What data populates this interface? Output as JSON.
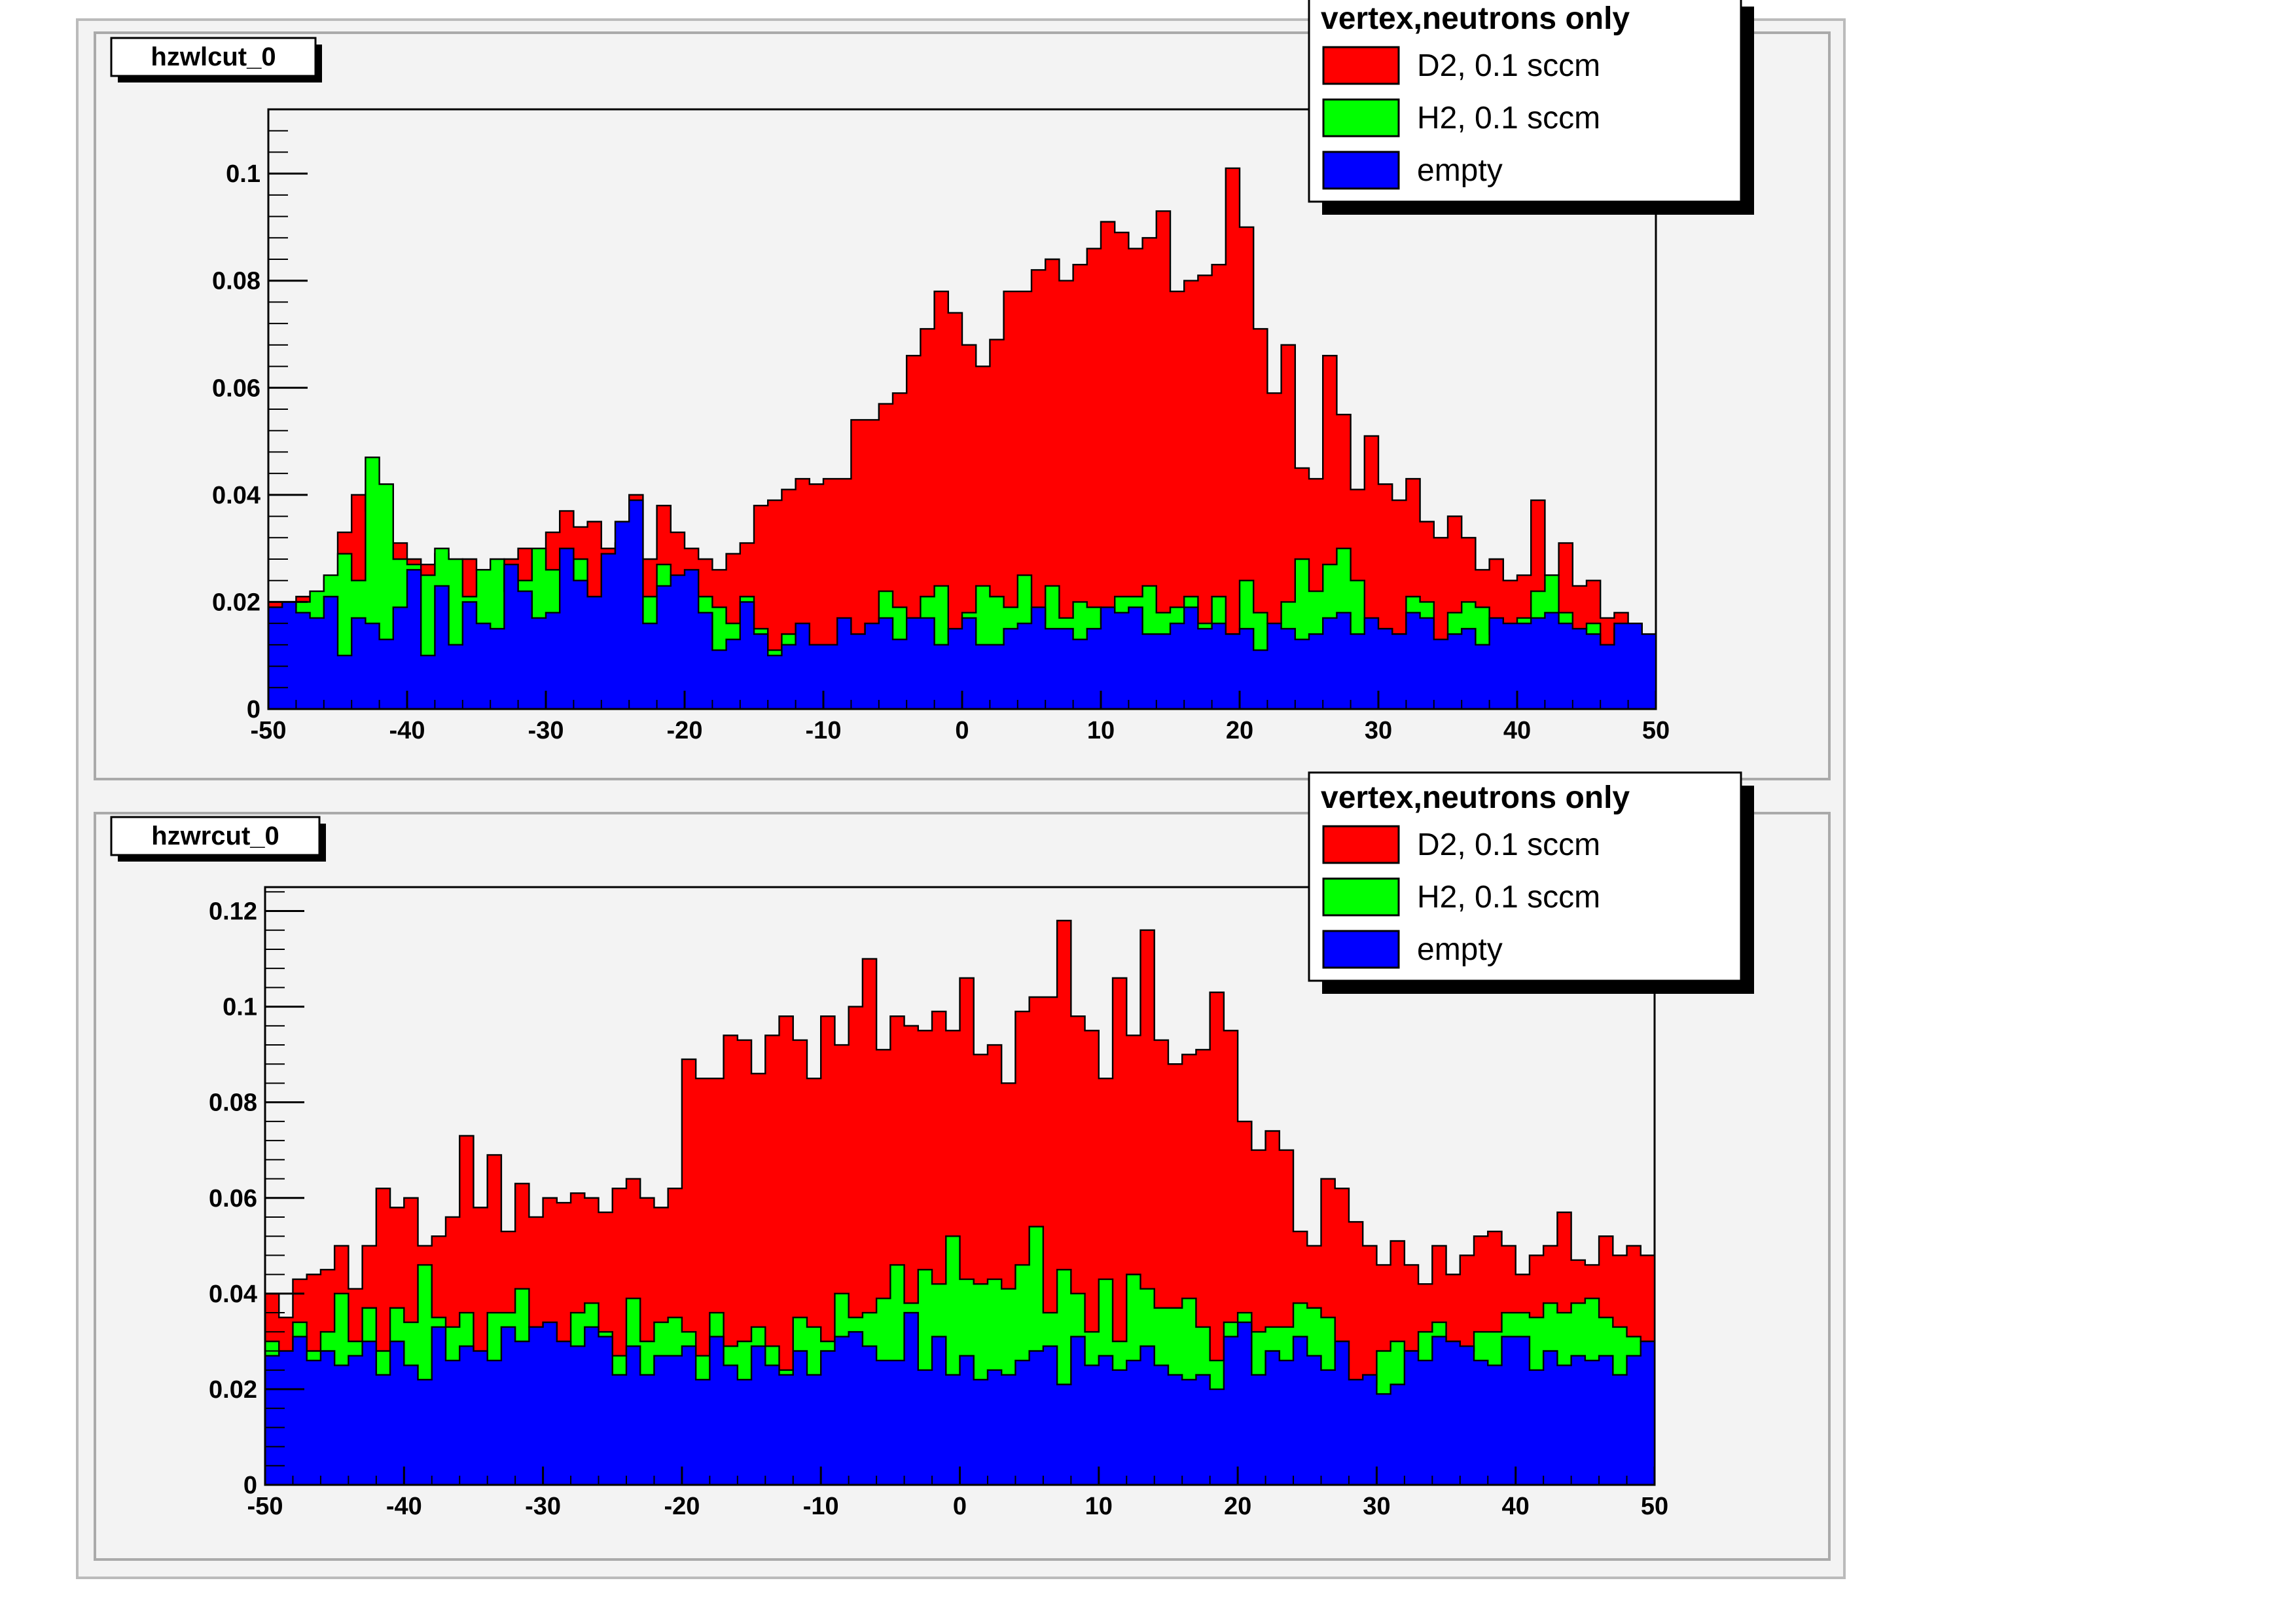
{
  "colors": {
    "D2": "#ff0000",
    "H2": "#00ff00",
    "empty": "#0000ff",
    "frame": "#f3f3f3"
  },
  "chart_data": [
    {
      "type": "bar",
      "title": "hzwlcut_0",
      "xlabel": "",
      "ylabel": "",
      "xlim": [
        -50,
        50
      ],
      "ylim": [
        0,
        0.112
      ],
      "xticks": [
        -50,
        -40,
        -30,
        -20,
        -10,
        0,
        10,
        20,
        30,
        40,
        50
      ],
      "yticks": [
        0,
        0.02,
        0.04,
        0.06,
        0.08,
        0.1
      ],
      "ytick_labels": [
        "0",
        "0.02",
        "0.04",
        "0.06",
        "0.08",
        "0.1"
      ],
      "bin_width": 1,
      "legend": {
        "header": "vertex,neutrons only",
        "position": "top-right",
        "entries": [
          {
            "name": "D2, 0.1 sccm",
            "color": "#ff0000"
          },
          {
            "name": "H2, 0.1 sccm",
            "color": "#00ff00"
          },
          {
            "name": "empty",
            "color": "#0000ff"
          }
        ]
      },
      "series": [
        {
          "name": "D2, 0.1 sccm",
          "color": "#ff0000",
          "values": [
            0.02,
            0.02,
            0.021,
            0.016,
            0.024,
            0.033,
            0.04,
            0.037,
            0.041,
            0.031,
            0.028,
            0.027,
            0.029,
            0.025,
            0.028,
            0.026,
            0.02,
            0.028,
            0.03,
            0.019,
            0.033,
            0.037,
            0.034,
            0.035,
            0.03,
            0.031,
            0.04,
            0.028,
            0.038,
            0.033,
            0.03,
            0.028,
            0.026,
            0.029,
            0.031,
            0.038,
            0.039,
            0.041,
            0.043,
            0.042,
            0.043,
            0.043,
            0.054,
            0.054,
            0.057,
            0.059,
            0.066,
            0.071,
            0.078,
            0.074,
            0.068,
            0.064,
            0.069,
            0.078,
            0.078,
            0.082,
            0.084,
            0.08,
            0.083,
            0.086,
            0.091,
            0.089,
            0.086,
            0.088,
            0.093,
            0.078,
            0.08,
            0.081,
            0.083,
            0.101,
            0.09,
            0.071,
            0.059,
            0.068,
            0.045,
            0.043,
            0.066,
            0.055,
            0.041,
            0.051,
            0.042,
            0.039,
            0.043,
            0.035,
            0.032,
            0.036,
            0.032,
            0.026,
            0.028,
            0.024,
            0.025,
            0.039,
            0.025,
            0.031,
            0.023,
            0.024,
            0.017,
            0.018,
            0.014,
            0.012
          ]
        },
        {
          "name": "H2, 0.1 sccm",
          "color": "#00ff00",
          "values": [
            0.019,
            0.019,
            0.02,
            0.022,
            0.025,
            0.029,
            0.024,
            0.047,
            0.042,
            0.028,
            0.027,
            0.025,
            0.03,
            0.028,
            0.021,
            0.026,
            0.028,
            0.022,
            0.024,
            0.03,
            0.026,
            0.024,
            0.028,
            0.021,
            0.028,
            0.03,
            0.028,
            0.021,
            0.027,
            0.024,
            0.022,
            0.021,
            0.019,
            0.016,
            0.021,
            0.015,
            0.011,
            0.014,
            0.013,
            0.011,
            0.009,
            0.011,
            0.012,
            0.016,
            0.022,
            0.019,
            0.017,
            0.021,
            0.023,
            0.013,
            0.018,
            0.023,
            0.021,
            0.019,
            0.025,
            0.016,
            0.023,
            0.017,
            0.02,
            0.019,
            0.016,
            0.021,
            0.021,
            0.023,
            0.018,
            0.019,
            0.021,
            0.016,
            0.021,
            0.014,
            0.024,
            0.018,
            0.016,
            0.02,
            0.028,
            0.022,
            0.027,
            0.03,
            0.024,
            0.015,
            0.015,
            0.014,
            0.021,
            0.02,
            0.012,
            0.018,
            0.02,
            0.019,
            0.014,
            0.016,
            0.017,
            0.022,
            0.025,
            0.018,
            0.015,
            0.016,
            0.011,
            0.015,
            0.01,
            0.009
          ]
        },
        {
          "name": "empty",
          "color": "#0000ff",
          "values": [
            0.019,
            0.02,
            0.018,
            0.017,
            0.021,
            0.01,
            0.017,
            0.016,
            0.013,
            0.019,
            0.026,
            0.01,
            0.023,
            0.012,
            0.02,
            0.016,
            0.015,
            0.027,
            0.022,
            0.017,
            0.018,
            0.03,
            0.024,
            0.021,
            0.029,
            0.035,
            0.039,
            0.016,
            0.023,
            0.025,
            0.026,
            0.018,
            0.011,
            0.013,
            0.02,
            0.014,
            0.01,
            0.012,
            0.016,
            0.012,
            0.012,
            0.017,
            0.014,
            0.016,
            0.017,
            0.013,
            0.017,
            0.017,
            0.012,
            0.015,
            0.017,
            0.012,
            0.012,
            0.015,
            0.016,
            0.019,
            0.015,
            0.015,
            0.013,
            0.015,
            0.019,
            0.018,
            0.019,
            0.014,
            0.014,
            0.016,
            0.019,
            0.015,
            0.016,
            0.014,
            0.015,
            0.011,
            0.016,
            0.015,
            0.013,
            0.014,
            0.017,
            0.018,
            0.014,
            0.017,
            0.015,
            0.014,
            0.018,
            0.017,
            0.013,
            0.014,
            0.015,
            0.012,
            0.017,
            0.016,
            0.016,
            0.017,
            0.018,
            0.016,
            0.015,
            0.014,
            0.012,
            0.016,
            0.016,
            0.014
          ]
        }
      ]
    },
    {
      "type": "bar",
      "title": "hzwrcut_0",
      "xlabel": "",
      "ylabel": "",
      "xlim": [
        -50,
        50
      ],
      "ylim": [
        0,
        0.125
      ],
      "xticks": [
        -50,
        -40,
        -30,
        -20,
        -10,
        0,
        10,
        20,
        30,
        40,
        50
      ],
      "yticks": [
        0,
        0.02,
        0.04,
        0.06,
        0.08,
        0.1,
        0.12
      ],
      "ytick_labels": [
        "0",
        "0.02",
        "0.04",
        "0.06",
        "0.08",
        "0.1",
        "0.12"
      ],
      "bin_width": 1,
      "legend": {
        "header": "vertex,neutrons only",
        "position": "top-right",
        "entries": [
          {
            "name": "D2, 0.1 sccm",
            "color": "#ff0000"
          },
          {
            "name": "H2, 0.1 sccm",
            "color": "#00ff00"
          },
          {
            "name": "empty",
            "color": "#0000ff"
          }
        ]
      },
      "series": [
        {
          "name": "D2, 0.1 sccm",
          "color": "#ff0000",
          "values": [
            0.04,
            0.035,
            0.043,
            0.044,
            0.045,
            0.05,
            0.041,
            0.05,
            0.062,
            0.058,
            0.06,
            0.05,
            0.052,
            0.056,
            0.073,
            0.058,
            0.069,
            0.053,
            0.063,
            0.056,
            0.06,
            0.059,
            0.061,
            0.06,
            0.057,
            0.062,
            0.064,
            0.06,
            0.058,
            0.062,
            0.089,
            0.085,
            0.085,
            0.094,
            0.093,
            0.086,
            0.094,
            0.098,
            0.093,
            0.085,
            0.098,
            0.092,
            0.1,
            0.11,
            0.091,
            0.098,
            0.096,
            0.095,
            0.099,
            0.095,
            0.106,
            0.09,
            0.092,
            0.084,
            0.099,
            0.102,
            0.102,
            0.118,
            0.098,
            0.095,
            0.085,
            0.106,
            0.094,
            0.116,
            0.093,
            0.088,
            0.09,
            0.091,
            0.103,
            0.095,
            0.076,
            0.07,
            0.074,
            0.07,
            0.053,
            0.05,
            0.064,
            0.062,
            0.055,
            0.05,
            0.046,
            0.051,
            0.046,
            0.042,
            0.05,
            0.044,
            0.048,
            0.052,
            0.053,
            0.05,
            0.044,
            0.048,
            0.05,
            0.057,
            0.047,
            0.046,
            0.052,
            0.048,
            0.05,
            0.048
          ]
        },
        {
          "name": "H2, 0.1 sccm",
          "color": "#00ff00",
          "values": [
            0.03,
            0.025,
            0.034,
            0.028,
            0.032,
            0.04,
            0.03,
            0.037,
            0.028,
            0.037,
            0.034,
            0.046,
            0.035,
            0.033,
            0.036,
            0.024,
            0.036,
            0.036,
            0.041,
            0.033,
            0.034,
            0.028,
            0.036,
            0.038,
            0.032,
            0.027,
            0.039,
            0.03,
            0.034,
            0.035,
            0.032,
            0.027,
            0.036,
            0.029,
            0.03,
            0.033,
            0.029,
            0.024,
            0.035,
            0.033,
            0.03,
            0.04,
            0.035,
            0.036,
            0.039,
            0.046,
            0.038,
            0.045,
            0.042,
            0.052,
            0.043,
            0.042,
            0.043,
            0.041,
            0.046,
            0.054,
            0.036,
            0.045,
            0.04,
            0.032,
            0.043,
            0.03,
            0.044,
            0.041,
            0.037,
            0.037,
            0.039,
            0.033,
            0.026,
            0.034,
            0.036,
            0.032,
            0.033,
            0.033,
            0.038,
            0.037,
            0.035,
            0.03,
            0.022,
            0.021,
            0.028,
            0.03,
            0.028,
            0.032,
            0.034,
            0.03,
            0.028,
            0.032,
            0.032,
            0.036,
            0.036,
            0.035,
            0.038,
            0.036,
            0.038,
            0.039,
            0.035,
            0.033,
            0.031,
            0.03
          ]
        },
        {
          "name": "empty",
          "color": "#0000ff",
          "values": [
            0.027,
            0.028,
            0.031,
            0.026,
            0.028,
            0.025,
            0.027,
            0.03,
            0.023,
            0.03,
            0.025,
            0.022,
            0.033,
            0.026,
            0.029,
            0.028,
            0.026,
            0.033,
            0.03,
            0.033,
            0.034,
            0.03,
            0.029,
            0.033,
            0.031,
            0.023,
            0.029,
            0.023,
            0.027,
            0.027,
            0.029,
            0.022,
            0.031,
            0.025,
            0.022,
            0.029,
            0.025,
            0.023,
            0.028,
            0.023,
            0.028,
            0.031,
            0.032,
            0.029,
            0.026,
            0.026,
            0.036,
            0.024,
            0.031,
            0.023,
            0.027,
            0.022,
            0.024,
            0.023,
            0.026,
            0.028,
            0.029,
            0.021,
            0.031,
            0.025,
            0.027,
            0.024,
            0.026,
            0.029,
            0.025,
            0.023,
            0.022,
            0.023,
            0.02,
            0.031,
            0.034,
            0.023,
            0.028,
            0.026,
            0.031,
            0.027,
            0.024,
            0.03,
            0.022,
            0.023,
            0.019,
            0.021,
            0.028,
            0.026,
            0.031,
            0.03,
            0.029,
            0.026,
            0.025,
            0.031,
            0.031,
            0.024,
            0.028,
            0.025,
            0.027,
            0.026,
            0.027,
            0.023,
            0.027,
            0.03
          ]
        }
      ]
    }
  ]
}
